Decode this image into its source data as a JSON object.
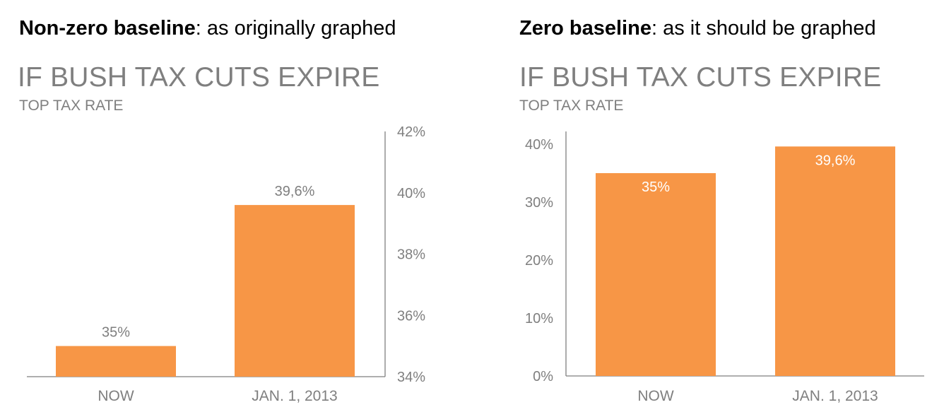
{
  "left": {
    "caption_bold": "Non-zero baseline",
    "caption_rest": ": as originally graphed"
  },
  "right": {
    "caption_bold": "Zero baseline",
    "caption_rest": ": as it should be graphed"
  },
  "chart_data": [
    {
      "type": "bar",
      "title": "IF BUSH TAX CUTS EXPIRE",
      "subtitle": "TOP TAX RATE",
      "categories": [
        "NOW",
        "JAN. 1, 2013"
      ],
      "values": [
        35,
        39.6
      ],
      "data_labels": [
        "35%",
        "39,6%"
      ],
      "label_position": "above",
      "ylim": [
        34,
        42
      ],
      "yticks": [
        34,
        36,
        38,
        40,
        42
      ],
      "ytick_labels": [
        "34%",
        "36%",
        "38%",
        "40%",
        "42%"
      ],
      "y_axis_side": "right",
      "grid": false,
      "bar_color": "#f79646"
    },
    {
      "type": "bar",
      "title": "IF BUSH TAX CUTS EXPIRE",
      "subtitle": "TOP TAX RATE",
      "categories": [
        "NOW",
        "JAN. 1, 2013"
      ],
      "values": [
        35,
        39.6
      ],
      "data_labels": [
        "35%",
        "39,6%"
      ],
      "label_position": "inside-top",
      "ylim": [
        0,
        40
      ],
      "yticks": [
        0,
        10,
        20,
        30,
        40
      ],
      "ytick_labels": [
        "0%",
        "10%",
        "20%",
        "30%",
        "40%"
      ],
      "y_axis_side": "left",
      "grid": false,
      "bar_color": "#f79646"
    }
  ]
}
